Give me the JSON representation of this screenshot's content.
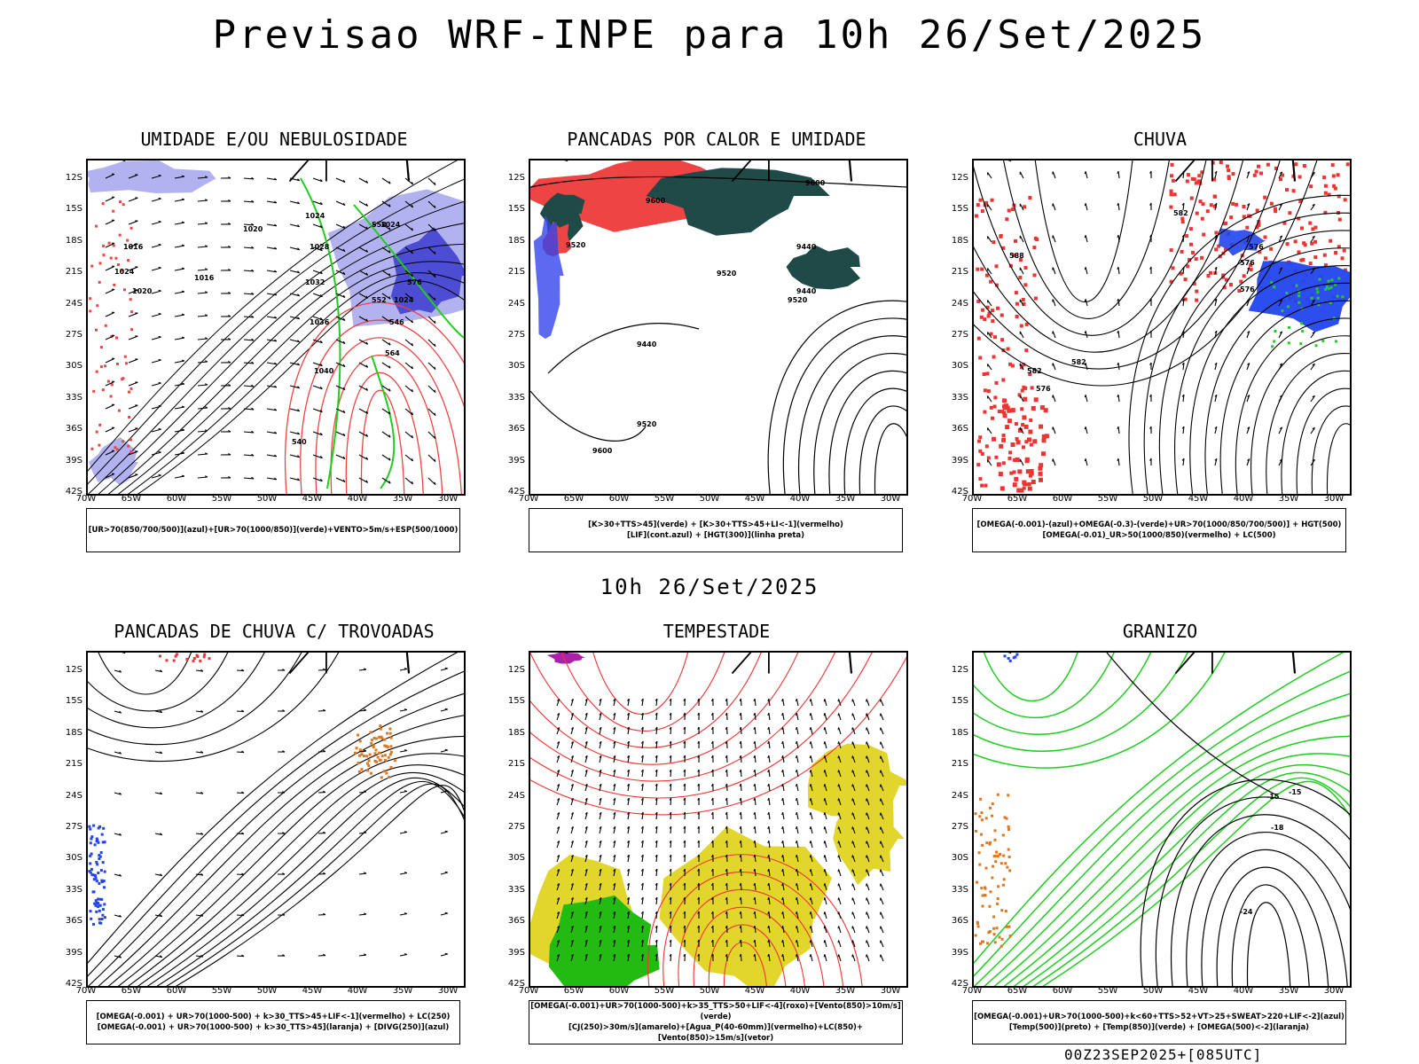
{
  "header": {
    "title": "Previsao WRF-INPE  para 10h 26/Set/2025",
    "mid_title": "10h 26/Set/2025"
  },
  "footer": {
    "run_stamp": "00Z23SEP2025+[085UTC]"
  },
  "axes": {
    "lat_labels": [
      "12S",
      "15S",
      "18S",
      "21S",
      "24S",
      "27S",
      "30S",
      "33S",
      "36S",
      "39S",
      "42S"
    ],
    "lon_labels": [
      "70W",
      "65W",
      "60W",
      "55W",
      "50W",
      "45W",
      "40W",
      "35W",
      "30W"
    ]
  },
  "panels": [
    {
      "title": "UMIDADE E/OU NEBULOSIDADE",
      "legend": [
        "[UR>70(850/700/500)](azul)+[UR>70(1000/850)](verde)+VENTO>5m/s+ESP(500/1000)"
      ],
      "labels": [
        "1020",
        "1016",
        "1024",
        "1020",
        "1016",
        "1024",
        "1028",
        "1032",
        "1036",
        "1040",
        "540",
        "564",
        "552",
        "576",
        "558",
        "546",
        "1024",
        "1024"
      ],
      "colors": {
        "humidity_high": "#aaaaee",
        "humidity_core": "#3333cc",
        "humidity_low": "#22cc22",
        "thickness": "#ee4444"
      }
    },
    {
      "title": "PANCADAS POR CALOR E UMIDADE",
      "legend": [
        "[K>30+TTS>45](verde) + [K>30+TTS>45+LI<-1](vermelho)",
        "[LIF](cont.azul) + [HGT(300)](linha preta)"
      ],
      "labels": [
        "9600",
        "9600",
        "9520",
        "9440",
        "9520",
        "9440",
        "9520",
        "9440",
        "9520",
        "9600"
      ],
      "colors": {
        "green_zone": "#1f4a48",
        "red_zone": "#ee4444",
        "lif": "#3344ee"
      }
    },
    {
      "title": "CHUVA",
      "legend": [
        "[OMEGA(-0.001)-(azul)+OMEGA(-0.3)-(verde)+UR>70(1000/850/700/500)] + HGT(500)",
        "[OMEGA(-0.01)_UR>50(1000/850)(vermelho) + LC(500)"
      ],
      "labels": [
        "582",
        "576",
        "576",
        "576",
        "588",
        "582",
        "582",
        "576"
      ],
      "colors": {
        "blue": "#2244ee",
        "green": "#22cc22",
        "red": "#ee3333"
      }
    },
    {
      "title": "PANCADAS DE CHUVA C/ TROVOADAS",
      "legend": [
        "[OMEGA(-0.001) + UR>70(1000-500) + k>30_TTS>45+LIF<-1](vermelho) + LC(250)",
        "[OMEGA(-0.001) + UR>70(1000-500) + k>30_TTS>45](laranja) + [DIVG(250)](azul)"
      ],
      "labels": [],
      "colors": {
        "orange": "#dd7722",
        "blue": "#2244ee",
        "red": "#ee3333"
      }
    },
    {
      "title": "TEMPESTADE",
      "legend": [
        "[OMEGA(-0.001)+UR>70(1000-500)+k>35_TTS>50+LIF<-4](roxo)+[Vento(850)>10m/s](verde)",
        "[CJ(250)>30m/s](amarelo)+[Agua_P(40-60mm)](vermelho)+LC(850)+[Vento(850)>15m/s](vetor)"
      ],
      "labels": [],
      "colors": {
        "yellow": "#e2d62c",
        "green": "#22bb11",
        "red": "#ee3333",
        "purple": "#aa22aa"
      }
    },
    {
      "title": "GRANIZO",
      "legend": [
        "[OMEGA(-0.001)+UR>70(1000-500)+k<60+TTS>52+VT>25+SWEAT>220+LIF<-2](azul)",
        "[Temp(500)](preto) + [Temp(850)](verde) + [OMEGA(500)<-2](laranja)"
      ],
      "labels": [
        "-15",
        "-18",
        "-24",
        "-15"
      ],
      "colors": {
        "green": "#22cc22",
        "orange": "#dd7722",
        "blue": "#2244ee"
      }
    }
  ]
}
